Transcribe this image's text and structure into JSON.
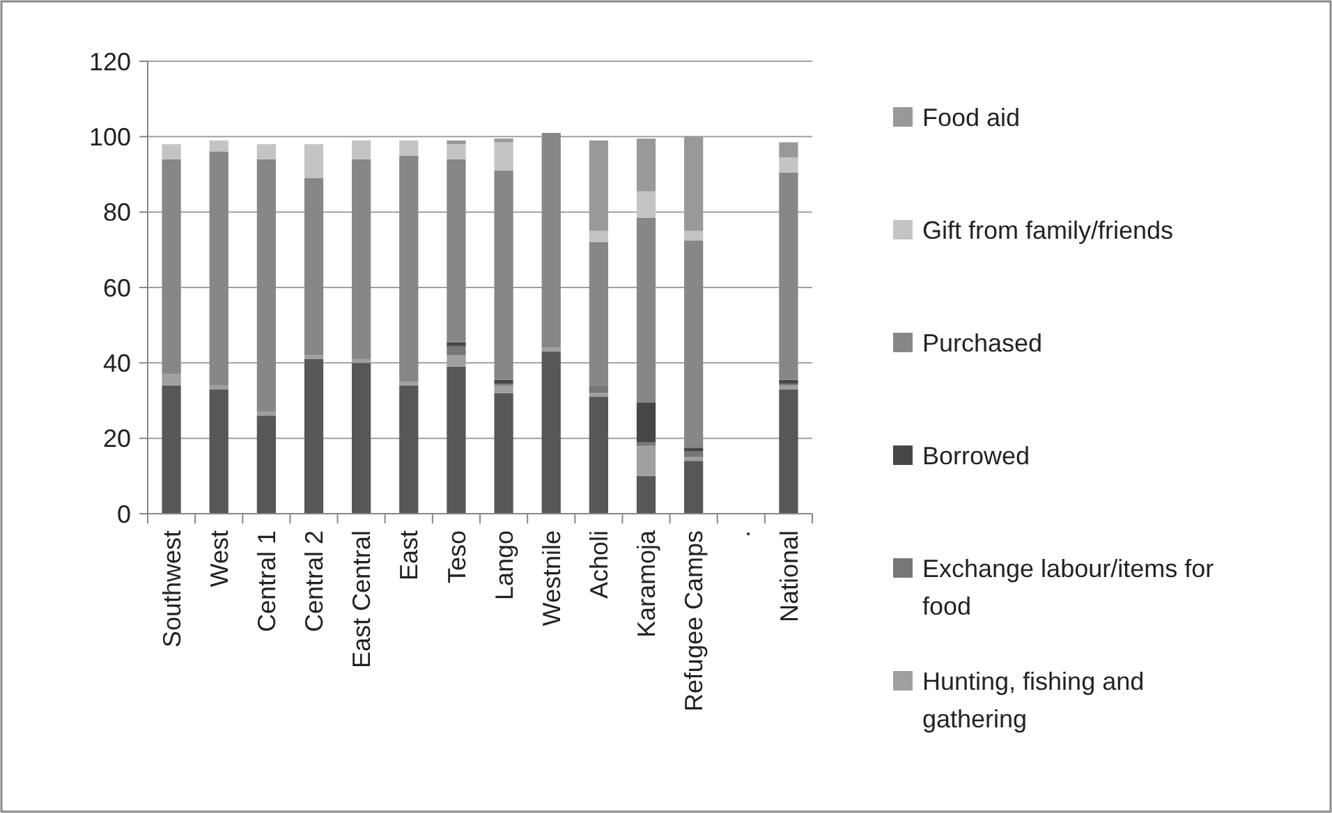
{
  "chart_data": {
    "type": "bar",
    "stacked": true,
    "legend": "right",
    "grid": "y",
    "categories": [
      "Southwest",
      "West",
      "Central 1",
      "Central 2",
      "East Central",
      "East",
      "Teso",
      "Lango",
      "Westnile",
      "Acholi",
      "Karamoja",
      "Refugee Camps",
      ".",
      "National"
    ],
    "ylim": [
      0,
      120
    ],
    "yticks": [
      0,
      20,
      40,
      60,
      80,
      100,
      120
    ],
    "series": [
      {
        "color": "#575757",
        "values": [
          34,
          33,
          26,
          41,
          40,
          34,
          39,
          32,
          43,
          31,
          10,
          14,
          null,
          33
        ]
      },
      {
        "name": "Hunting, fishing and gathering",
        "color": "#a0a0a0",
        "values": [
          3,
          1,
          1,
          1,
          1,
          1,
          3,
          2,
          1,
          1,
          8,
          1,
          null,
          1
        ]
      },
      {
        "name": "Exchange labour/items for food",
        "color": "#777777",
        "values": [
          0,
          0,
          0,
          0,
          0,
          0,
          2.5,
          0.5,
          0,
          2,
          1,
          1.5,
          null,
          0.5
        ]
      },
      {
        "name": "Borrowed",
        "color": "#464646",
        "values": [
          0,
          0,
          0,
          0,
          0,
          0,
          1,
          1,
          0,
          0,
          10.5,
          1,
          null,
          1
        ]
      },
      {
        "name": "Purchased",
        "color": "#878787",
        "values": [
          57,
          62,
          67,
          47,
          53,
          60,
          48.5,
          55.5,
          57,
          38,
          49,
          55,
          null,
          55
        ]
      },
      {
        "name": "Gift from family/friends",
        "color": "#c4c4c4",
        "values": [
          4,
          3,
          4,
          9,
          5,
          4,
          4,
          7.5,
          0,
          3,
          7,
          2.5,
          null,
          4
        ]
      },
      {
        "name": "Food aid",
        "color": "#999999",
        "values": [
          0,
          0,
          0,
          0,
          0,
          0,
          1,
          1,
          0,
          24,
          14,
          25,
          null,
          4
        ]
      }
    ]
  }
}
